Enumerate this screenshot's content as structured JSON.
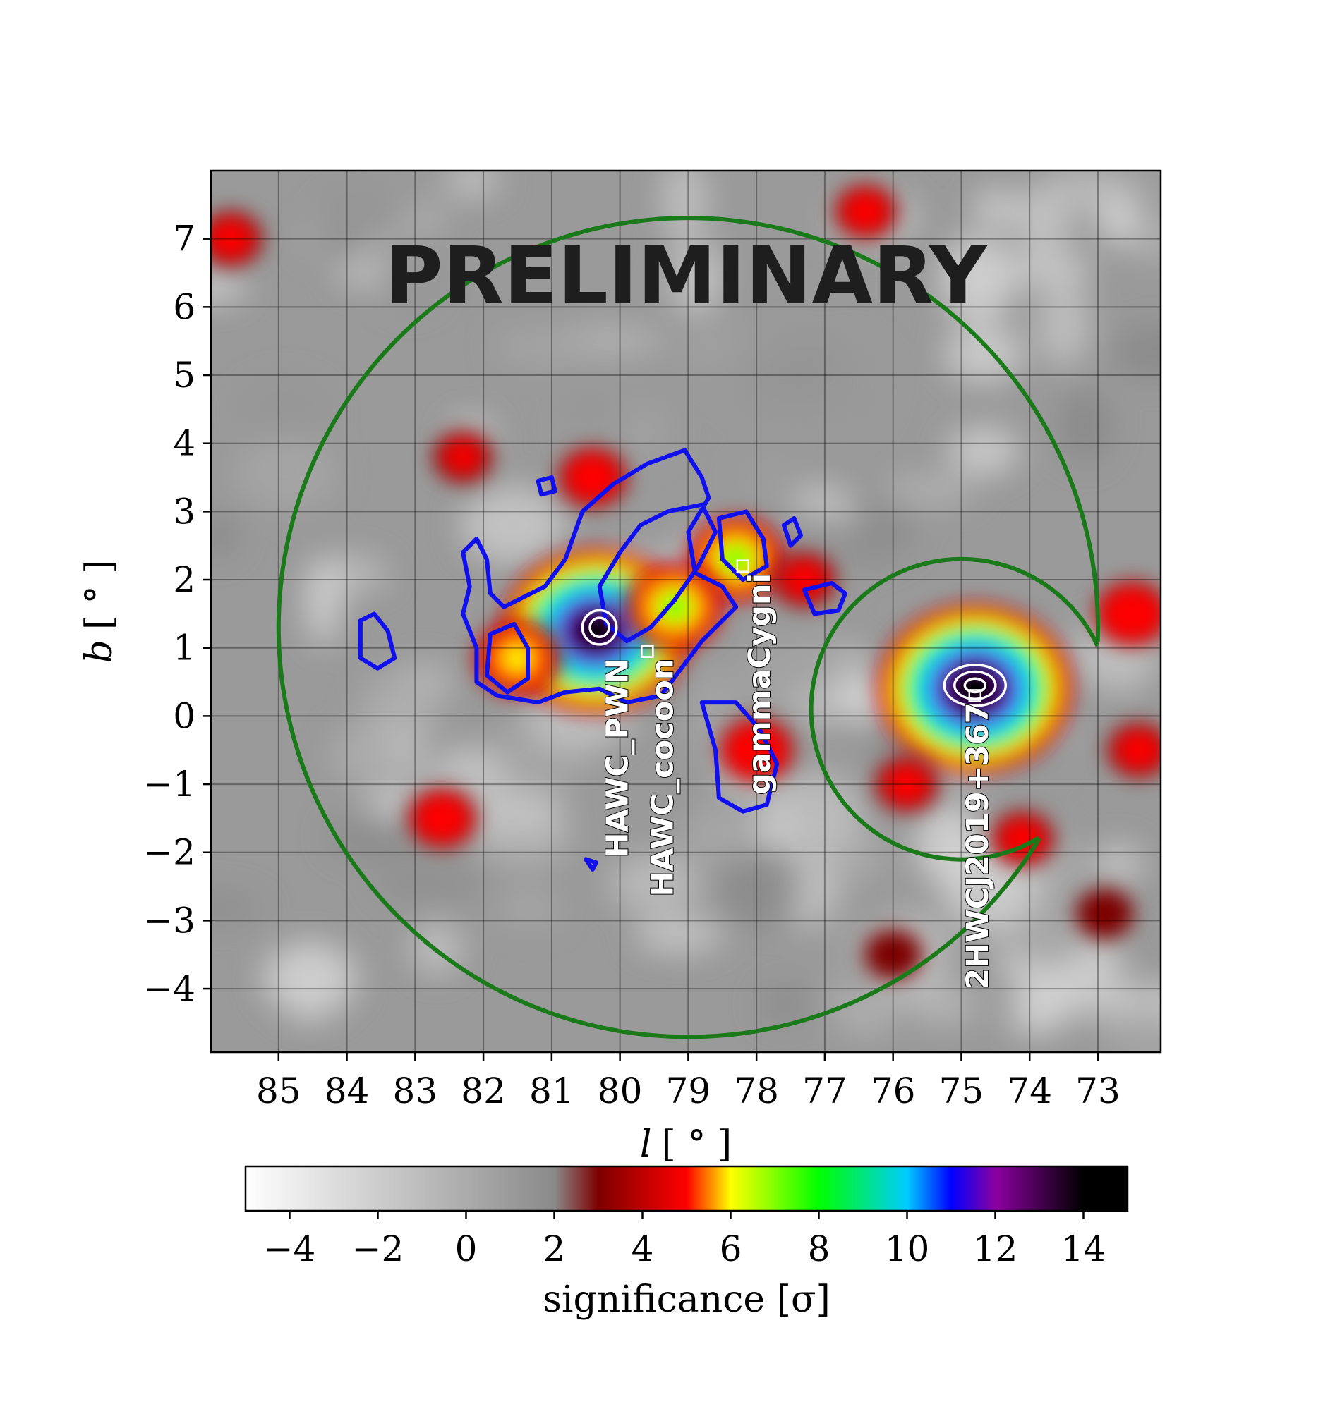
{
  "chart_data": {
    "type": "heatmap",
    "watermark": "PRELIMINARY",
    "xlabel_var": "l",
    "xlabel_unit": "[ ° ]",
    "ylabel_var": "b",
    "ylabel_unit": "[ ° ]",
    "xlim": [
      85.99,
      72.08
    ],
    "ylim": [
      -4.93,
      8.0
    ],
    "x_ticks": [
      85,
      84,
      83,
      82,
      81,
      80,
      79,
      78,
      77,
      76,
      75,
      74,
      73
    ],
    "x_tick_labels": [
      "85",
      "84",
      "83",
      "82",
      "81",
      "80",
      "79",
      "78",
      "77",
      "76",
      "75",
      "74",
      "73"
    ],
    "y_ticks": [
      7,
      6,
      5,
      4,
      3,
      2,
      1,
      0,
      -1,
      -2,
      -3,
      -4
    ],
    "y_tick_labels": [
      "7",
      "6",
      "5",
      "4",
      "3",
      "2",
      "1",
      "0",
      "−1",
      "−2",
      "−3",
      "−4"
    ],
    "grid": true,
    "colorbar": {
      "label": "significance [σ]",
      "range": [
        -5,
        15
      ],
      "ticks": [
        -4,
        -2,
        0,
        2,
        4,
        6,
        8,
        10,
        12,
        14
      ],
      "tick_labels": [
        "−4",
        "−2",
        "0",
        "2",
        "4",
        "6",
        "8",
        "10",
        "12",
        "14"
      ],
      "stops": [
        {
          "v": -5,
          "color": "#ffffff"
        },
        {
          "v": 2,
          "color": "#8a8a8a"
        },
        {
          "v": 3,
          "color": "#7d0000"
        },
        {
          "v": 5,
          "color": "#ff0000"
        },
        {
          "v": 6,
          "color": "#ffff00"
        },
        {
          "v": 8,
          "color": "#00ff00"
        },
        {
          "v": 10,
          "color": "#00ccff"
        },
        {
          "v": 11,
          "color": "#0000ff"
        },
        {
          "v": 12,
          "color": "#8b00a0"
        },
        {
          "v": 14,
          "color": "#000000"
        }
      ]
    },
    "hotspots": [
      {
        "l": 80.35,
        "b": 1.25,
        "sigma": 14.5
      },
      {
        "l": 74.8,
        "b": 0.4,
        "sigma": 15
      },
      {
        "l": 78.3,
        "b": 2.3,
        "sigma": 6.5
      },
      {
        "l": 79.2,
        "b": 1.6,
        "sigma": 6.5
      },
      {
        "l": 81.5,
        "b": 0.85,
        "sigma": 5.5
      },
      {
        "l": 78.0,
        "b": -0.5,
        "sigma": 4.5
      },
      {
        "l": 77.3,
        "b": 2.0,
        "sigma": 3.5
      },
      {
        "l": 80.4,
        "b": 3.5,
        "sigma": 4.0
      },
      {
        "l": 82.3,
        "b": 3.8,
        "sigma": 3.2
      },
      {
        "l": 82.6,
        "b": -1.5,
        "sigma": 4.0
      },
      {
        "l": 75.8,
        "b": -1.0,
        "sigma": 3.5
      },
      {
        "l": 74.1,
        "b": -1.8,
        "sigma": 3.5
      },
      {
        "l": 72.5,
        "b": 1.5,
        "sigma": 4.5
      },
      {
        "l": 72.4,
        "b": -0.5,
        "sigma": 3.5
      },
      {
        "l": 85.7,
        "b": 7.0,
        "sigma": 3.5
      },
      {
        "l": 76.4,
        "b": 7.4,
        "sigma": 3.5
      },
      {
        "l": 72.9,
        "b": -2.9,
        "sigma": 3.0
      },
      {
        "l": 76.0,
        "b": -3.5,
        "sigma": 3.0
      }
    ],
    "sources": [
      {
        "name": "HAWC_PWN",
        "l": 79.6,
        "b": 0.95
      },
      {
        "name": "HAWC_cocoon",
        "l": 79.6,
        "b": 0.95
      },
      {
        "name": "gammaCygni",
        "l": 78.2,
        "b": 2.2
      },
      {
        "name": "2HWCJ2019+367",
        "l": 74.8,
        "b": 0.3
      }
    ],
    "roi_outer": {
      "center_l": 79.0,
      "center_b": 1.3,
      "radius_deg": 6.0
    },
    "roi_excluded": {
      "center_l": 75.0,
      "center_b": 0.1,
      "radius_deg": 2.2
    },
    "blue_contours": [
      [
        [
          82.3,
          2.4
        ],
        [
          82.1,
          2.6
        ],
        [
          81.95,
          2.3
        ],
        [
          81.9,
          1.8
        ],
        [
          81.7,
          1.6
        ],
        [
          81.1,
          1.9
        ],
        [
          80.8,
          2.3
        ],
        [
          80.55,
          3.0
        ],
        [
          80.1,
          3.4
        ],
        [
          79.6,
          3.7
        ],
        [
          79.05,
          3.9
        ],
        [
          78.8,
          3.5
        ],
        [
          78.7,
          3.2
        ],
        [
          79.0,
          2.7
        ],
        [
          78.9,
          2.1
        ],
        [
          78.5,
          1.9
        ],
        [
          78.3,
          1.6
        ],
        [
          78.8,
          1.1
        ],
        [
          79.1,
          0.7
        ],
        [
          79.4,
          0.3
        ],
        [
          79.9,
          0.2
        ],
        [
          80.3,
          0.4
        ],
        [
          80.8,
          0.35
        ],
        [
          81.2,
          0.2
        ],
        [
          81.8,
          0.3
        ],
        [
          82.1,
          0.5
        ],
        [
          82.1,
          1.0
        ],
        [
          82.3,
          1.5
        ],
        [
          82.2,
          1.9
        ],
        [
          82.3,
          2.4
        ]
      ],
      [
        [
          80.0,
          2.4
        ],
        [
          79.7,
          2.8
        ],
        [
          79.3,
          3.0
        ],
        [
          78.8,
          3.1
        ],
        [
          78.6,
          2.7
        ],
        [
          78.85,
          2.2
        ],
        [
          79.2,
          1.7
        ],
        [
          79.55,
          1.3
        ],
        [
          79.9,
          1.1
        ],
        [
          80.2,
          1.35
        ],
        [
          80.3,
          1.9
        ],
        [
          80.0,
          2.4
        ]
      ],
      [
        [
          78.55,
          2.9
        ],
        [
          78.15,
          3.0
        ],
        [
          77.9,
          2.6
        ],
        [
          77.85,
          2.2
        ],
        [
          78.2,
          2.0
        ],
        [
          78.5,
          2.3
        ],
        [
          78.55,
          2.9
        ]
      ],
      [
        [
          81.9,
          1.2
        ],
        [
          81.55,
          1.35
        ],
        [
          81.35,
          1.0
        ],
        [
          81.35,
          0.55
        ],
        [
          81.65,
          0.35
        ],
        [
          81.95,
          0.6
        ],
        [
          81.9,
          1.2
        ]
      ],
      [
        [
          78.8,
          0.2
        ],
        [
          78.6,
          -0.5
        ],
        [
          78.55,
          -1.2
        ],
        [
          78.2,
          -1.4
        ],
        [
          77.85,
          -1.3
        ],
        [
          77.7,
          -0.7
        ],
        [
          77.95,
          -0.2
        ],
        [
          78.3,
          0.2
        ],
        [
          78.8,
          0.2
        ]
      ],
      [
        [
          83.8,
          1.4
        ],
        [
          83.6,
          1.5
        ],
        [
          83.4,
          1.25
        ],
        [
          83.3,
          0.85
        ],
        [
          83.55,
          0.7
        ],
        [
          83.8,
          0.85
        ],
        [
          83.8,
          1.4
        ]
      ],
      [
        [
          77.3,
          1.85
        ],
        [
          76.9,
          1.95
        ],
        [
          76.7,
          1.8
        ],
        [
          76.8,
          1.55
        ],
        [
          77.15,
          1.5
        ],
        [
          77.3,
          1.85
        ]
      ],
      [
        [
          81.2,
          3.45
        ],
        [
          81.0,
          3.5
        ],
        [
          80.95,
          3.3
        ],
        [
          81.15,
          3.25
        ],
        [
          81.2,
          3.45
        ]
      ],
      [
        [
          77.6,
          2.8
        ],
        [
          77.45,
          2.9
        ],
        [
          77.35,
          2.65
        ],
        [
          77.5,
          2.5
        ],
        [
          77.6,
          2.8
        ]
      ],
      [
        [
          80.5,
          -2.1
        ],
        [
          80.35,
          -2.15
        ],
        [
          80.4,
          -2.25
        ],
        [
          80.5,
          -2.1
        ]
      ]
    ],
    "white_contours": [
      {
        "l": 80.3,
        "b": 1.3,
        "rx_deg": 0.25,
        "ry_deg": 0.25
      },
      {
        "l": 80.3,
        "b": 1.3,
        "rx_deg": 0.14,
        "ry_deg": 0.14
      },
      {
        "l": 74.8,
        "b": 0.45,
        "rx_deg": 0.45,
        "ry_deg": 0.3
      },
      {
        "l": 74.8,
        "b": 0.45,
        "rx_deg": 0.3,
        "ry_deg": 0.2
      },
      {
        "l": 74.8,
        "b": 0.45,
        "rx_deg": 0.15,
        "ry_deg": 0.1
      }
    ]
  }
}
